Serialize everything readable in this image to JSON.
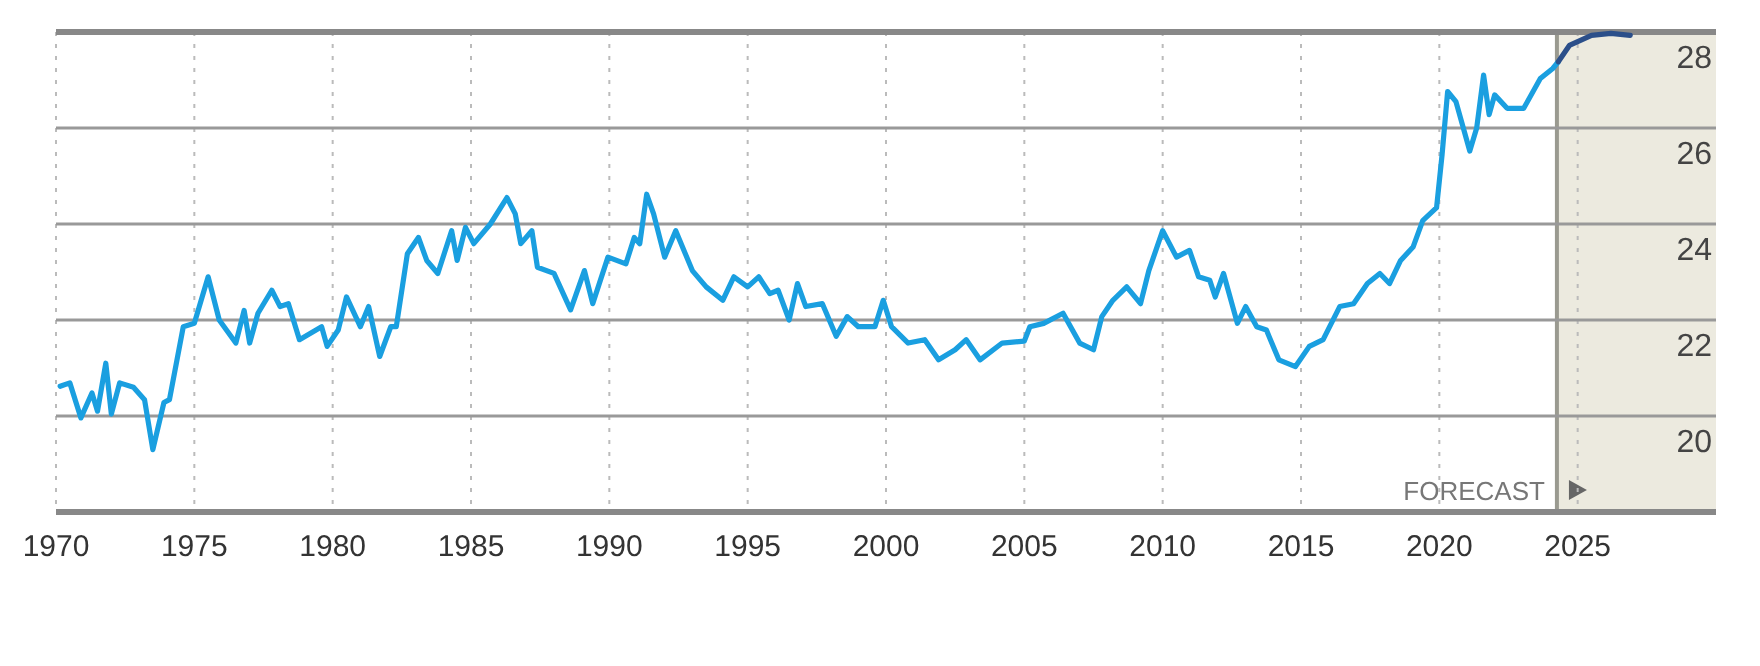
{
  "chart_data": {
    "type": "line",
    "xlim": [
      1970,
      2030
    ],
    "xticks": [
      1970,
      1975,
      1980,
      1985,
      1990,
      1995,
      2000,
      2005,
      2010,
      2015,
      2020,
      2025
    ],
    "ylim": [
      18,
      28
    ],
    "yticks": [
      20,
      22,
      24,
      26,
      28
    ],
    "grid": true,
    "ref_lines": [
      {
        "axis": "x",
        "value": 2024.25,
        "color": "#9a9a90"
      }
    ],
    "bands": [
      {
        "axis": "x",
        "from": 2024.25,
        "to": 2030,
        "label": "FORECAST",
        "color": "#eceadf"
      }
    ],
    "series": [
      {
        "color": "#1a9fe0",
        "x": [
          1970.15,
          1970.5,
          1970.9,
          1971.3,
          1971.5,
          1971.8,
          1972.0,
          1972.3,
          1972.8,
          1973.2,
          1973.5,
          1973.9,
          1974.1,
          1974.6,
          1975.0,
          1975.5,
          1975.9,
          1976.5,
          1976.8,
          1977.0,
          1977.3,
          1977.8,
          1978.1,
          1978.4,
          1978.8,
          1979.6,
          1979.8,
          1980.2,
          1980.5,
          1981.0,
          1981.3,
          1981.7,
          1982.1,
          1982.3,
          1982.7,
          1983.1,
          1983.4,
          1983.8,
          1984.3,
          1984.5,
          1984.8,
          1985.1,
          1985.7,
          1986.3,
          1986.6,
          1986.8,
          1987.2,
          1987.4,
          1988.0,
          1988.6,
          1989.1,
          1989.4,
          1989.95,
          1990.6,
          1990.9,
          1991.1,
          1991.35,
          1991.6,
          1992.0,
          1992.4,
          1993.0,
          1993.5,
          1994.1,
          1994.5,
          1995.0,
          1995.4,
          1995.8,
          1996.1,
          1996.5,
          1996.8,
          1997.1,
          1997.7,
          1998.2,
          1998.6,
          1999.0,
          1999.6,
          1999.9,
          2000.2,
          2000.8,
          2001.4,
          2001.9,
          2002.5,
          2002.9,
          2003.4,
          2004.2,
          2005.0,
          2005.2,
          2005.7,
          2006.4,
          2007.0,
          2007.5,
          2007.8,
          2008.2,
          2008.7,
          2009.2,
          2009.5,
          2010.0,
          2010.5,
          2010.97,
          2011.3,
          2011.7,
          2011.9,
          2012.2,
          2012.7,
          2013.0,
          2013.4,
          2013.75,
          2014.2,
          2014.8,
          2015.3,
          2015.8,
          2016.4,
          2016.9,
          2017.4,
          2017.85,
          2018.2,
          2018.6,
          2019.05,
          2019.4,
          2019.9,
          2020.1,
          2020.3,
          2020.6,
          2021.1,
          2021.35,
          2021.6,
          2021.8,
          2022.0,
          2022.45,
          2023.05,
          2023.65,
          2024.1,
          2024.3
        ],
        "values": [
          20.62,
          20.69,
          19.96,
          20.48,
          20.1,
          21.1,
          20.04,
          20.69,
          20.6,
          20.34,
          19.3,
          20.28,
          20.34,
          21.86,
          21.93,
          22.9,
          22.0,
          21.52,
          22.2,
          21.52,
          22.14,
          22.62,
          22.28,
          22.34,
          21.59,
          21.86,
          21.45,
          21.79,
          22.48,
          21.86,
          22.28,
          21.24,
          21.86,
          21.86,
          23.38,
          23.72,
          23.24,
          22.97,
          23.86,
          23.24,
          23.93,
          23.59,
          24.0,
          24.55,
          24.21,
          23.59,
          23.86,
          23.1,
          22.97,
          22.21,
          23.03,
          22.34,
          23.31,
          23.17,
          23.72,
          23.59,
          24.62,
          24.21,
          23.31,
          23.86,
          23.03,
          22.69,
          22.41,
          22.9,
          22.69,
          22.9,
          22.55,
          22.62,
          22.0,
          22.76,
          22.28,
          22.34,
          21.66,
          22.07,
          21.86,
          21.86,
          22.41,
          21.86,
          21.52,
          21.59,
          21.17,
          21.38,
          21.59,
          21.17,
          21.52,
          21.56,
          21.86,
          21.93,
          22.14,
          21.52,
          21.38,
          22.07,
          22.41,
          22.69,
          22.34,
          23.03,
          23.86,
          23.31,
          23.45,
          22.9,
          22.83,
          22.48,
          22.97,
          21.93,
          22.28,
          21.86,
          21.79,
          21.17,
          21.03,
          21.45,
          21.59,
          22.28,
          22.34,
          22.76,
          22.97,
          22.76,
          23.24,
          23.52,
          24.07,
          24.34,
          25.45,
          26.76,
          26.55,
          25.52,
          26.0,
          27.1,
          26.28,
          26.69,
          26.41,
          26.41,
          27.03,
          27.24,
          27.38
        ]
      },
      {
        "color": "#2b4f8a",
        "x": [
          2024.3,
          2024.7,
          2025.5,
          2026.2,
          2026.9
        ],
        "values": [
          27.38,
          27.72,
          27.93,
          27.97,
          27.93
        ]
      }
    ]
  }
}
